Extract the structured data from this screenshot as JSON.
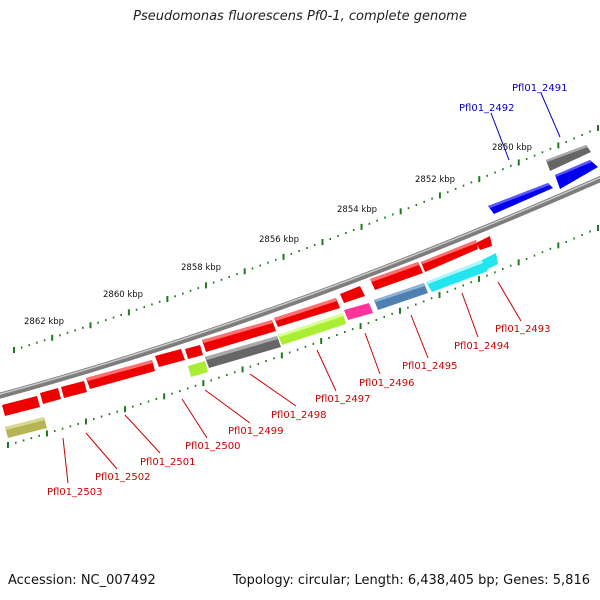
{
  "title": "Pseudomonas fluorescens Pf0-1, complete genome",
  "footer": {
    "accession": "Accession: NC_007492",
    "summary": "Topology: circular; Length: 6,438,405 bp; Genes: 5,816"
  },
  "axis": {
    "ticks": [
      {
        "label": "2850 kbp"
      },
      {
        "label": "2852 kbp"
      },
      {
        "label": "2854 kbp"
      },
      {
        "label": "2856 kbp"
      },
      {
        "label": "2858 kbp"
      },
      {
        "label": "2860 kbp"
      },
      {
        "label": "2862 kbp"
      }
    ]
  },
  "genes": [
    {
      "name": "Pfl01_2491",
      "strand": "+",
      "color": "#0000ee",
      "label_color": "#0000cc"
    },
    {
      "name": "Pfl01_2492",
      "strand": "+",
      "color": "#0000ee",
      "label_color": "#0000cc"
    },
    {
      "name": "Pfl01_2493",
      "strand": "-",
      "color": "#ee0000",
      "label_color": "#cc0000"
    },
    {
      "name": "Pfl01_2494",
      "strand": "-",
      "color": "#ee0000",
      "label_color": "#cc0000"
    },
    {
      "name": "Pfl01_2495",
      "strand": "-",
      "color": "#ee0000",
      "label_color": "#cc0000"
    },
    {
      "name": "Pfl01_2496",
      "strand": "-",
      "color": "#ee0000",
      "label_color": "#cc0000"
    },
    {
      "name": "Pfl01_2497",
      "strand": "-",
      "color": "#ee0000",
      "label_color": "#cc0000"
    },
    {
      "name": "Pfl01_2498",
      "strand": "-",
      "color": "#ee0000",
      "label_color": "#cc0000"
    },
    {
      "name": "Pfl01_2499",
      "strand": "-",
      "color": "#ee0000",
      "label_color": "#cc0000"
    },
    {
      "name": "Pfl01_2500",
      "strand": "-",
      "color": "#ee0000",
      "label_color": "#cc0000"
    },
    {
      "name": "Pfl01_2501",
      "strand": "-",
      "color": "#ee0000",
      "label_color": "#cc0000"
    },
    {
      "name": "Pfl01_2502",
      "strand": "-",
      "color": "#ee0000",
      "label_color": "#cc0000"
    },
    {
      "name": "Pfl01_2503",
      "strand": "-",
      "color": "#ee0000",
      "label_color": "#cc0000"
    }
  ],
  "feature_colors": {
    "backbone": "#8c8c8c",
    "gray_feature": "#666666",
    "cyan_feature": "#22e5f0",
    "steelblue_feature": "#4f7fb0",
    "magenta_feature": "#ff3399",
    "lime_feature": "#aaee33",
    "olive_feature": "#b5b555",
    "tick_color": "#1f7a1f"
  }
}
